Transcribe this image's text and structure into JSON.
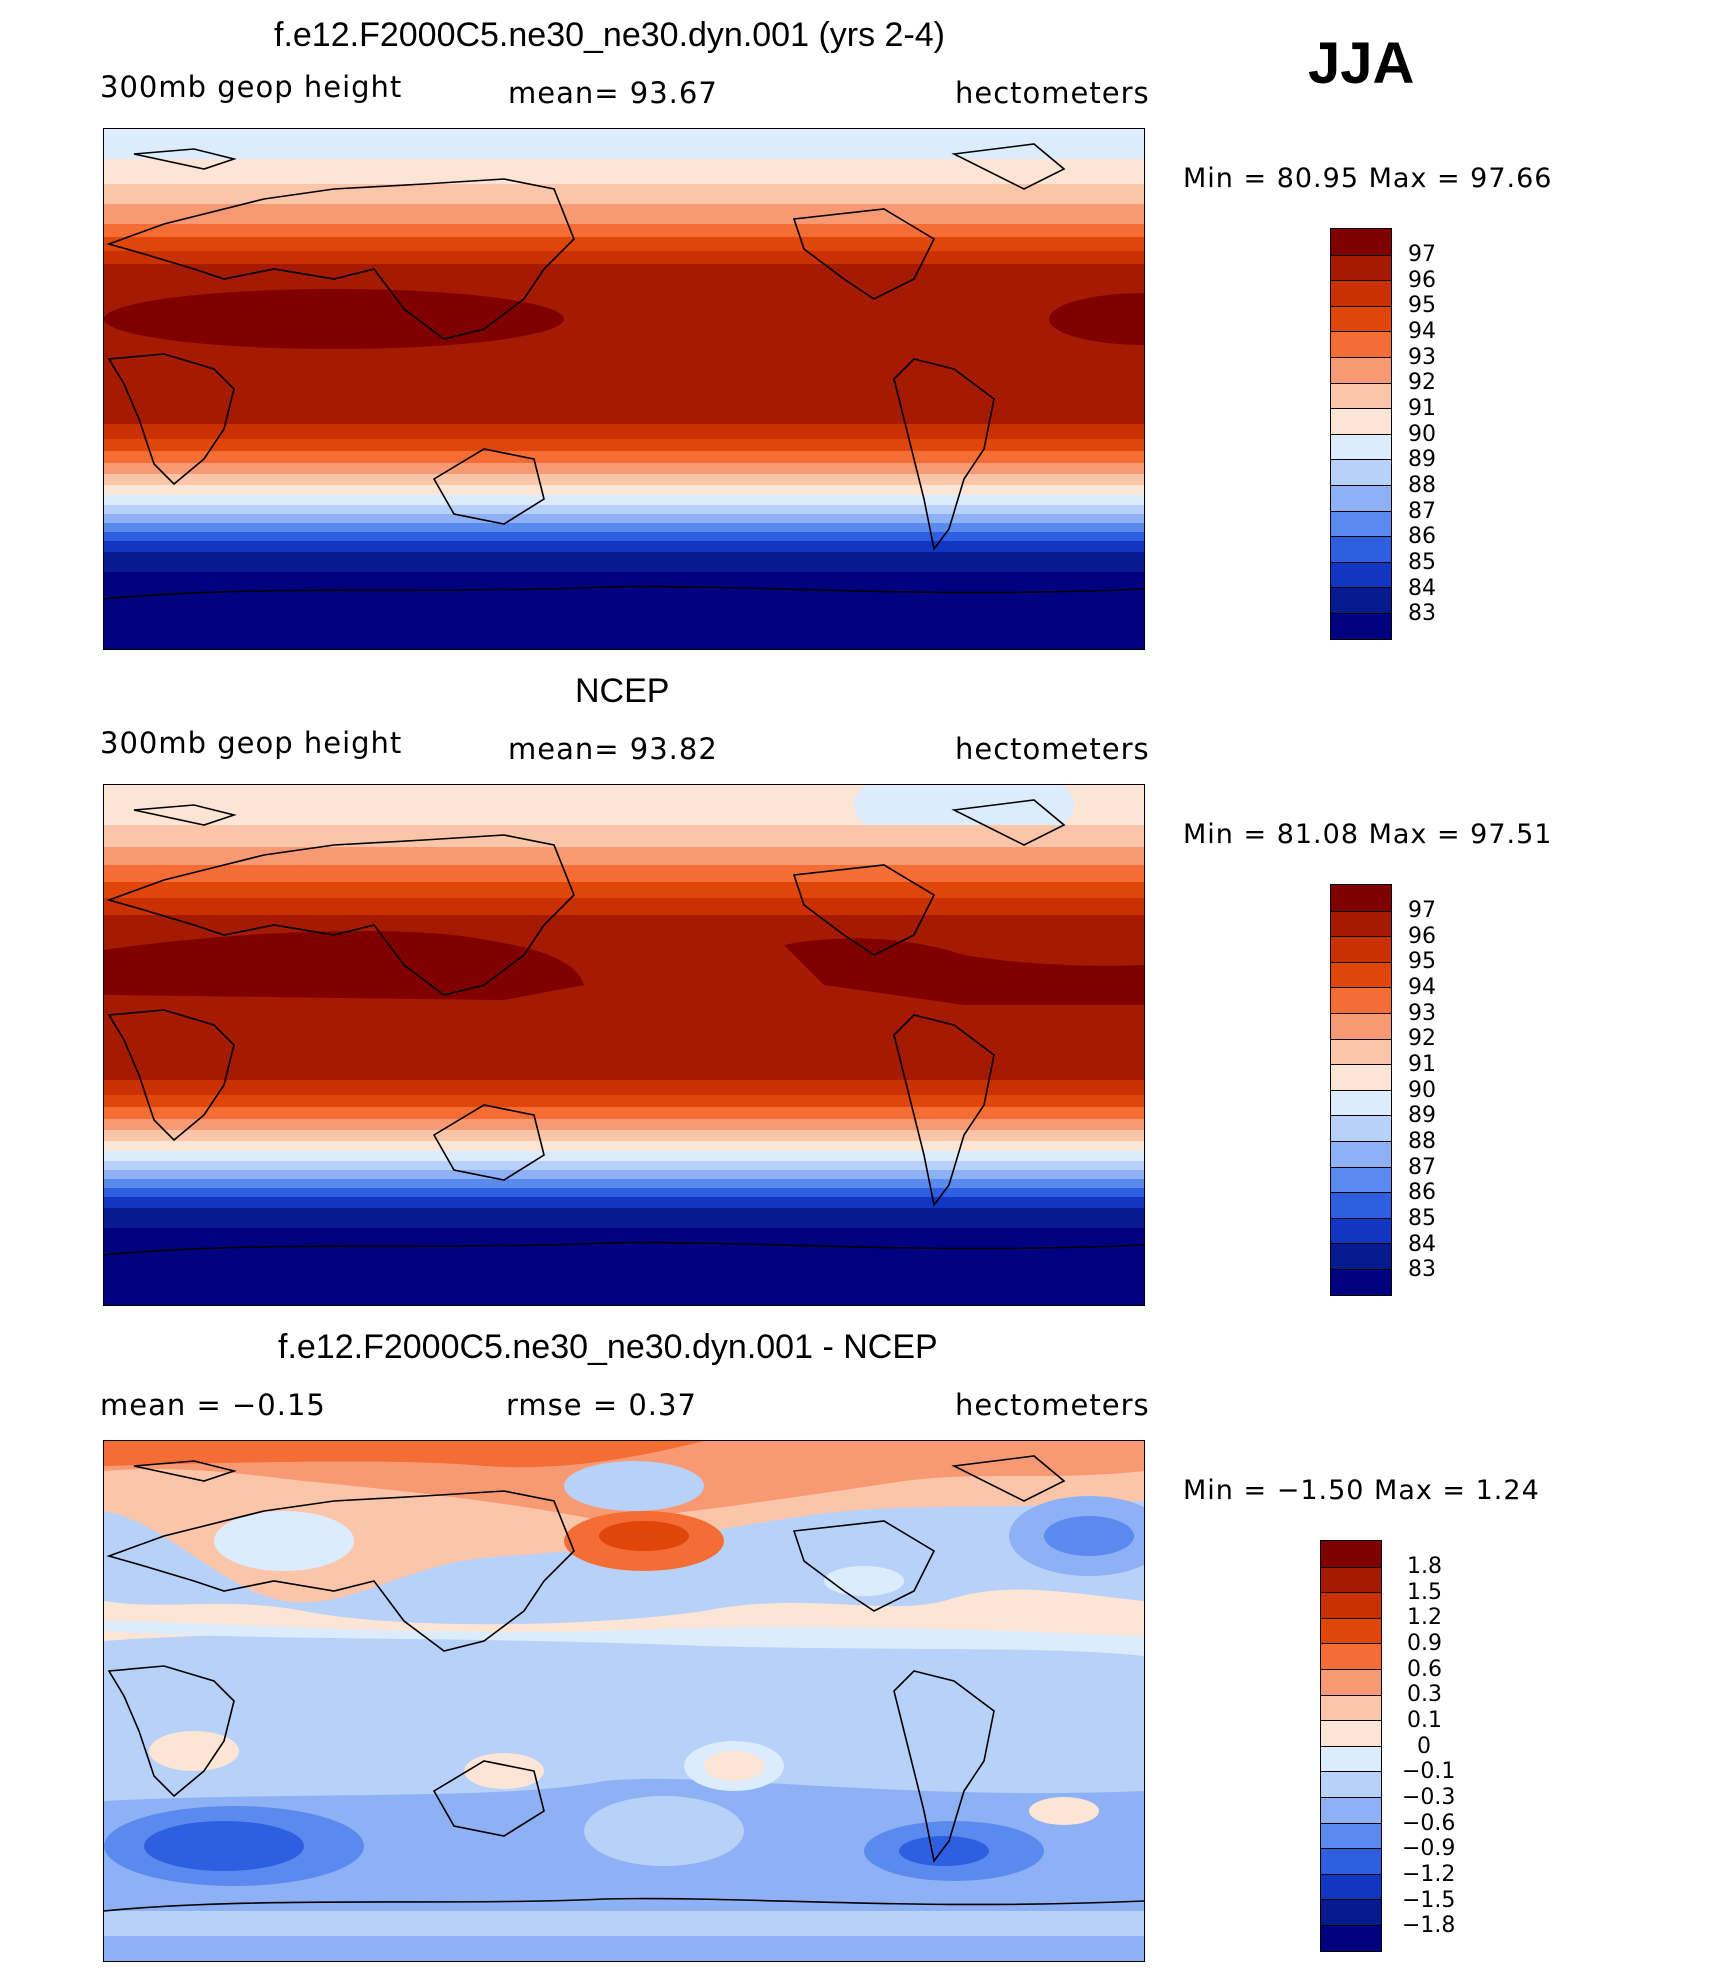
{
  "season": "JJA",
  "panels": [
    {
      "title": "f.e12.F2000C5.ne30_ne30.dyn.001 (yrs 2-4)",
      "left_label": "300mb  geop  height",
      "center_label": "mean=    93.67",
      "right_label": "hectometers",
      "minmax": "Min  =    80.95  Max  =    97.66",
      "colorbar_labels": [
        "97",
        "96",
        "95",
        "94",
        "93",
        "92",
        "91",
        "90",
        "89",
        "88",
        "87",
        "86",
        "85",
        "84",
        "83"
      ]
    },
    {
      "title": "NCEP",
      "left_label": "300mb  geop  height",
      "center_label": "mean=    93.82",
      "right_label": "hectometers",
      "minmax": "Min  =    81.08  Max  =    97.51",
      "colorbar_labels": [
        "97",
        "96",
        "95",
        "94",
        "93",
        "92",
        "91",
        "90",
        "89",
        "88",
        "87",
        "86",
        "85",
        "84",
        "83"
      ]
    },
    {
      "title": "f.e12.F2000C5.ne30_ne30.dyn.001 - NCEP",
      "left_label": "mean  =    −0.15",
      "center_label": "rmse  =     0.37",
      "right_label": "hectometers",
      "minmax": "Min  =    −1.50  Max  =      1.24",
      "colorbar_labels": [
        "1.8",
        "1.5",
        "1.2",
        "0.9",
        "0.6",
        "0.3",
        "0.1",
        "0",
        "−0.1",
        "−0.3",
        "−0.6",
        "−0.9",
        "−1.2",
        "−1.5",
        "−1.8"
      ]
    }
  ],
  "colors": {
    "warm_scale": [
      "#800000",
      "#a51a02",
      "#c93003",
      "#e04509",
      "#f46d35",
      "#f79a73",
      "#fbc5aa",
      "#fde5d6",
      "#dcecfc",
      "#b7d1f9",
      "#8db1f4",
      "#5b8aee",
      "#2d5fe0",
      "#1136c4",
      "#081a8f",
      "#000080"
    ],
    "diff_scale": [
      "#800000",
      "#a51a02",
      "#c93003",
      "#e04509",
      "#f46d35",
      "#f79a73",
      "#fbc5aa",
      "#fde5d6",
      "#dcecfc",
      "#b7d1f9",
      "#8db1f4",
      "#5b8aee",
      "#2d5fe0",
      "#1136c4",
      "#081a8f",
      "#000080"
    ]
  }
}
